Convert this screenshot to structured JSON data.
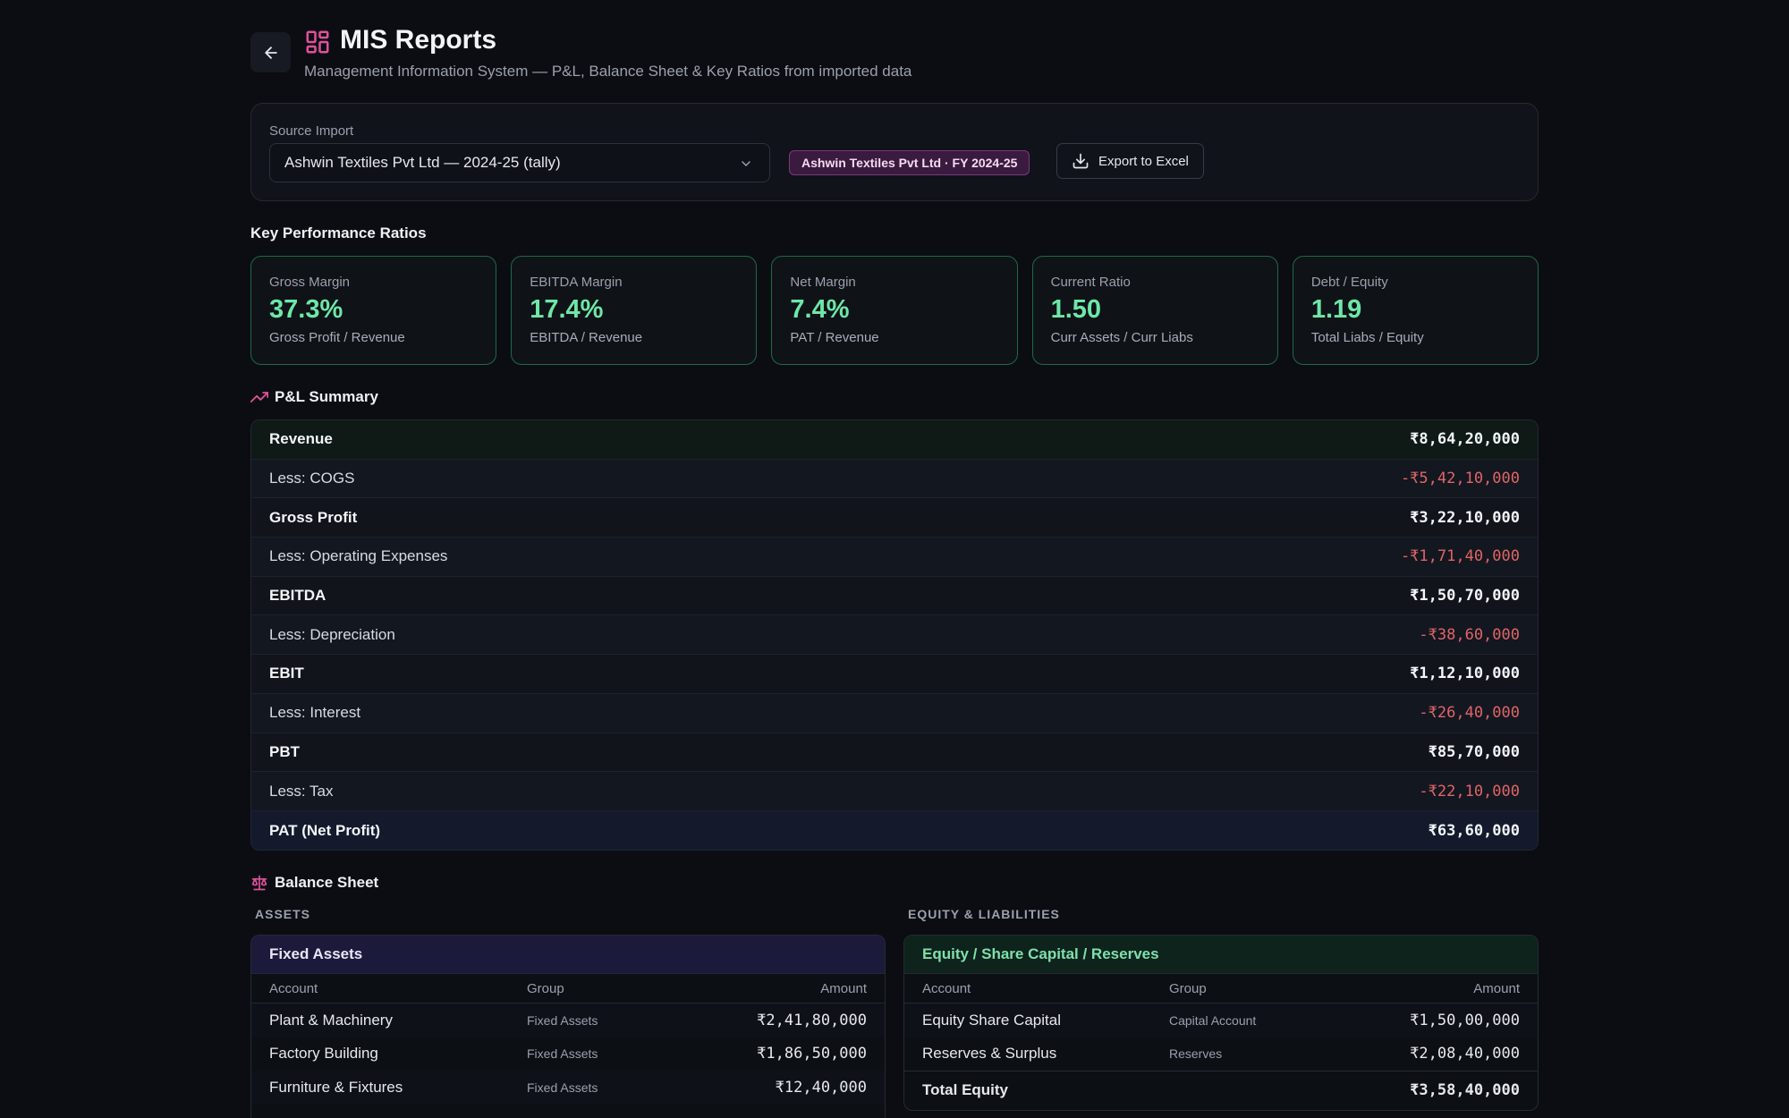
{
  "header": {
    "title": "MIS Reports",
    "subtitle": "Management Information System — P&L, Balance Sheet & Key Ratios from imported data"
  },
  "source": {
    "label": "Source Import",
    "selected": "Ashwin Textiles Pvt Ltd — 2024-25 (tally)",
    "badge": "Ashwin Textiles Pvt Ltd · FY 2024-25",
    "export_label": "Export to Excel"
  },
  "kpi_section_title": "Key Performance Ratios",
  "kpis": [
    {
      "label": "Gross Margin",
      "value": "37.3%",
      "sub": "Gross Profit / Revenue"
    },
    {
      "label": "EBITDA Margin",
      "value": "17.4%",
      "sub": "EBITDA / Revenue"
    },
    {
      "label": "Net Margin",
      "value": "7.4%",
      "sub": "PAT / Revenue"
    },
    {
      "label": "Current Ratio",
      "value": "1.50",
      "sub": "Curr Assets / Curr Liabs"
    },
    {
      "label": "Debt / Equity",
      "value": "1.19",
      "sub": "Total Liabs / Equity"
    }
  ],
  "pl": {
    "title": "P&L Summary",
    "rows": [
      {
        "label": "Revenue",
        "value": "₹8,64,20,000"
      },
      {
        "label": "Less: COGS",
        "value": "-₹5,42,10,000"
      },
      {
        "label": "Gross Profit",
        "value": "₹3,22,10,000"
      },
      {
        "label": "Less: Operating Expenses",
        "value": "-₹1,71,40,000"
      },
      {
        "label": "EBITDA",
        "value": "₹1,50,70,000"
      },
      {
        "label": "Less: Depreciation",
        "value": "-₹38,60,000"
      },
      {
        "label": "EBIT",
        "value": "₹1,12,10,000"
      },
      {
        "label": "Less: Interest",
        "value": "-₹26,40,000"
      },
      {
        "label": "PBT",
        "value": "₹85,70,000"
      },
      {
        "label": "Less: Tax",
        "value": "-₹22,10,000"
      },
      {
        "label": "PAT (Net Profit)",
        "value": "₹63,60,000"
      }
    ]
  },
  "balance_sheet": {
    "title": "Balance Sheet",
    "assets_head": "ASSETS",
    "equity_head": "EQUITY & LIABILITIES",
    "cols": {
      "account": "Account",
      "group": "Group",
      "amount": "Amount"
    },
    "assets_card": {
      "title": "Fixed Assets",
      "rows": [
        {
          "account": "Plant & Machinery",
          "group": "Fixed Assets",
          "amount": "₹2,41,80,000"
        },
        {
          "account": "Factory Building",
          "group": "Fixed Assets",
          "amount": "₹1,86,50,000"
        },
        {
          "account": "Furniture & Fixtures",
          "group": "Fixed Assets",
          "amount": "₹12,40,000"
        }
      ]
    },
    "equity_card": {
      "title": "Equity / Share Capital / Reserves",
      "rows": [
        {
          "account": "Equity Share Capital",
          "group": "Capital Account",
          "amount": "₹1,50,00,000"
        },
        {
          "account": "Reserves & Surplus",
          "group": "Reserves",
          "amount": "₹2,08,40,000"
        }
      ],
      "total_label": "Total Equity",
      "total_amount": "₹3,58,40,000"
    }
  }
}
